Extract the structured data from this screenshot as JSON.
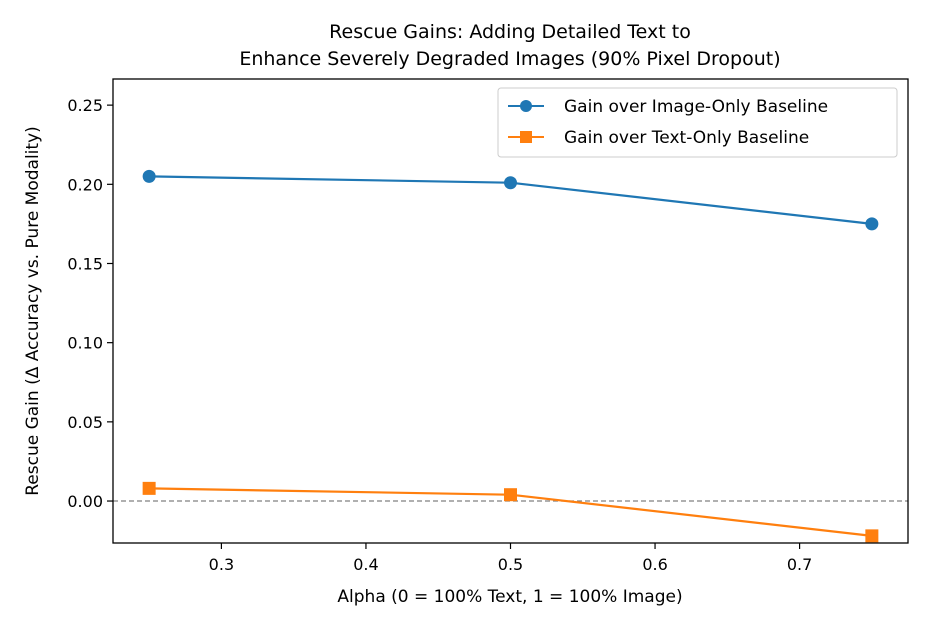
{
  "chart_data": {
    "type": "line",
    "title_lines": [
      "Rescue Gains: Adding Detailed Text to",
      "Enhance Severely Degraded Images (90% Pixel Dropout)"
    ],
    "xlabel": "Alpha (0 = 100% Text, 1 = 100% Image)",
    "ylabel": "Rescue Gain (Δ Accuracy vs. Pure Modality)",
    "x": [
      0.25,
      0.5,
      0.75
    ],
    "xlim": [
      0.225,
      0.775
    ],
    "ylim": [
      -0.0265,
      0.2665
    ],
    "xticks": [
      0.3,
      0.4,
      0.5,
      0.6,
      0.7
    ],
    "xtick_labels": [
      "0.3",
      "0.4",
      "0.5",
      "0.6",
      "0.7"
    ],
    "yticks": [
      0.0,
      0.05,
      0.1,
      0.15,
      0.2,
      0.25
    ],
    "ytick_labels": [
      "0.00",
      "0.05",
      "0.10",
      "0.15",
      "0.20",
      "0.25"
    ],
    "reference_line": {
      "y": 0.0,
      "style": "dashed",
      "color": "#808080"
    },
    "grid": false,
    "legend_position": "top-right",
    "series": [
      {
        "name": "Gain over Image-Only Baseline",
        "values": [
          0.205,
          0.201,
          0.175
        ],
        "color": "#1f77b4",
        "marker": "circle"
      },
      {
        "name": "Gain over Text-Only Baseline",
        "values": [
          0.008,
          0.004,
          -0.022
        ],
        "color": "#ff7f0e",
        "marker": "square"
      }
    ]
  }
}
